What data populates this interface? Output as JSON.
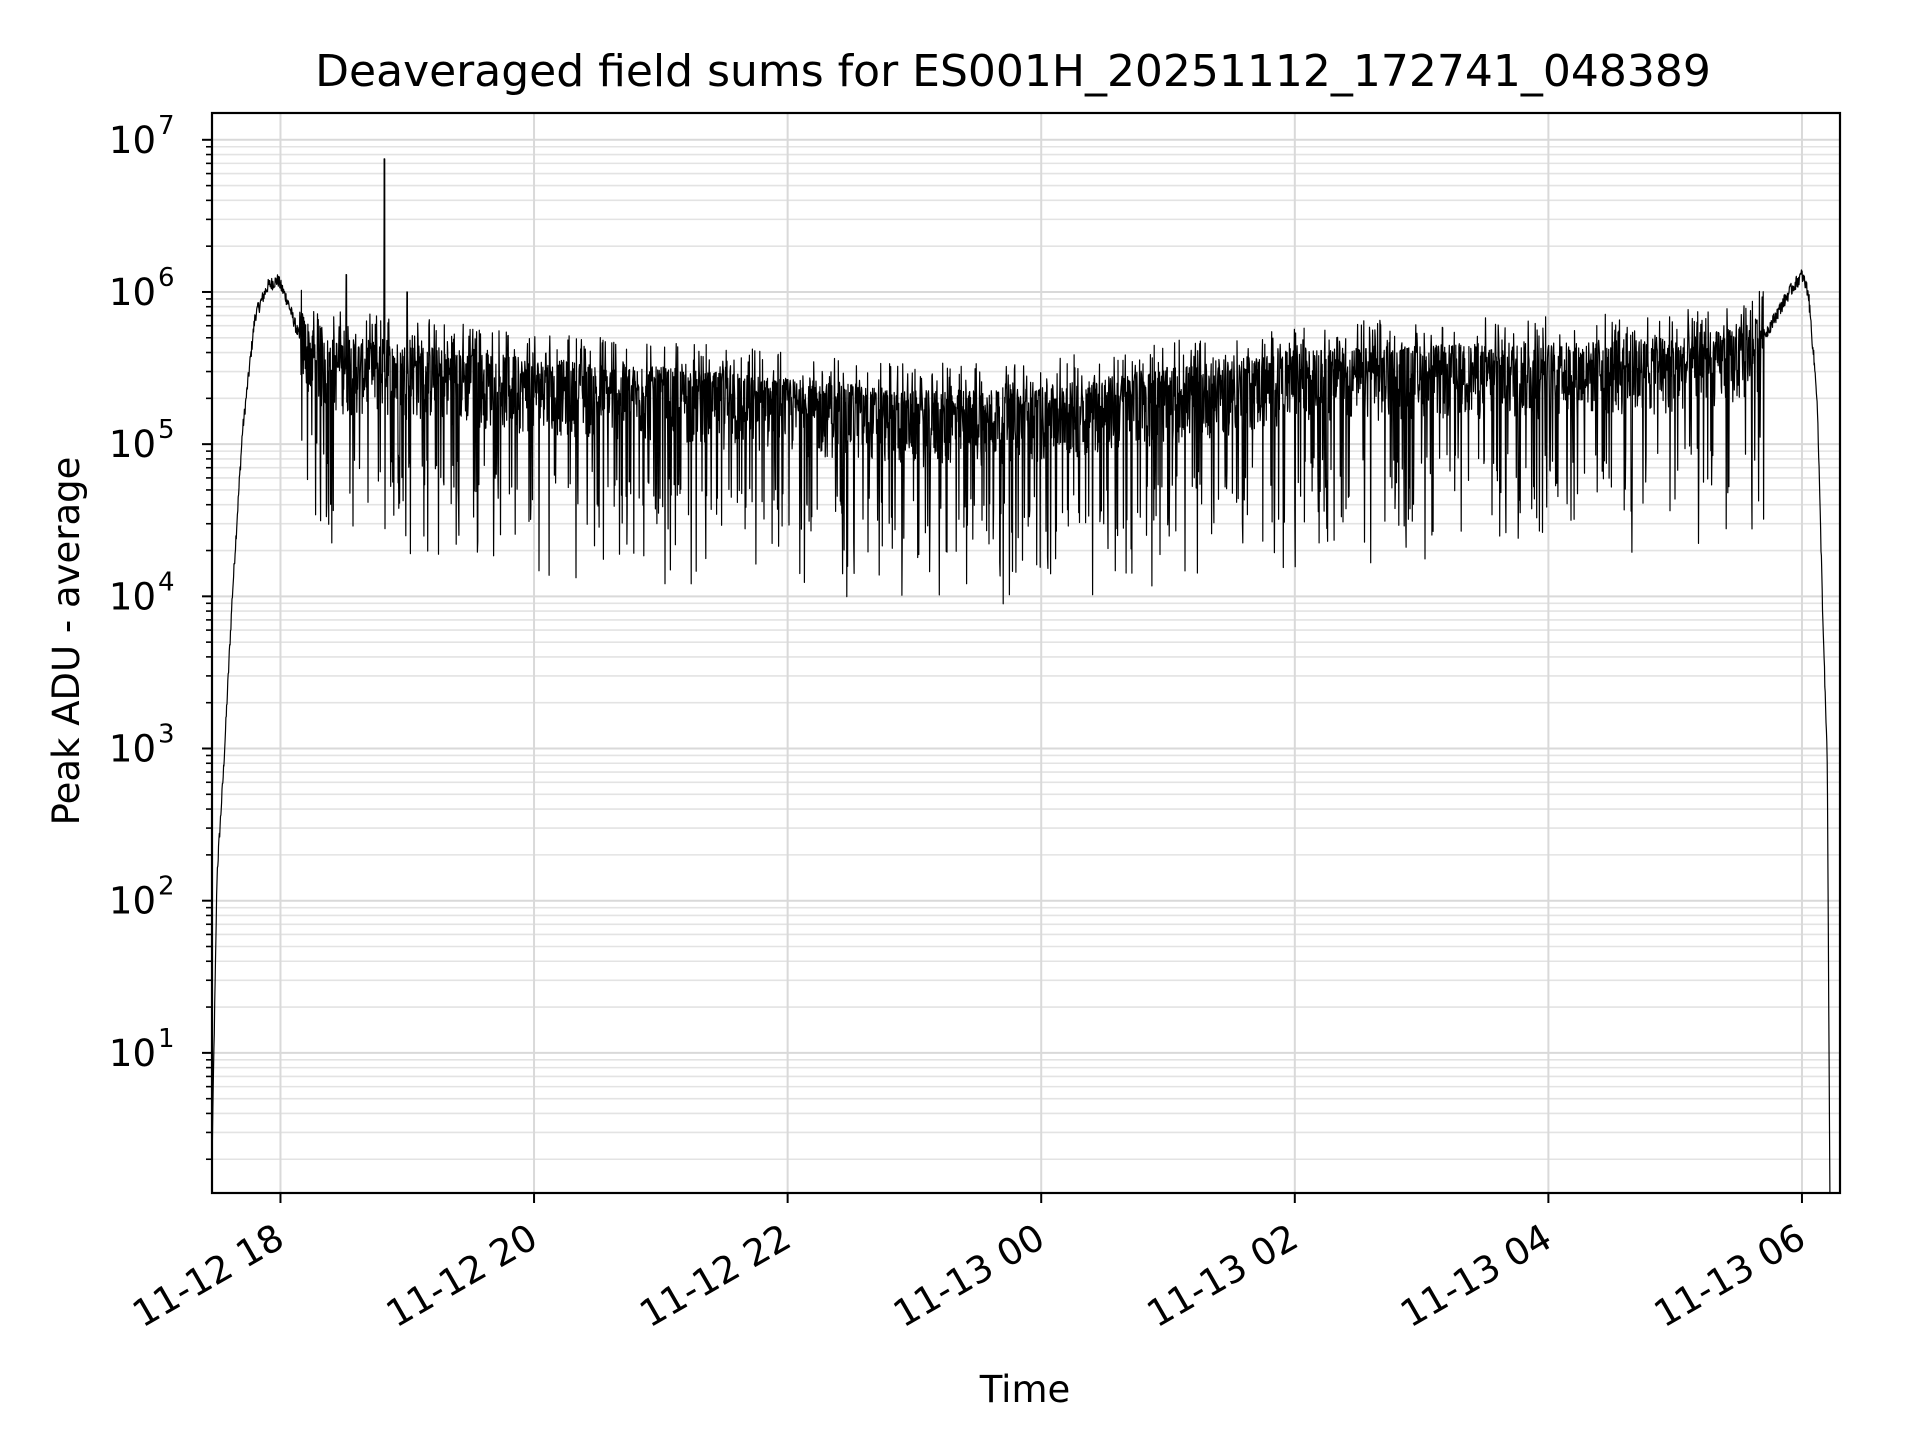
{
  "chart_data": {
    "type": "line",
    "title": "Deaveraged field sums for ES001H_20251112_172741_048389",
    "xlabel": "Time",
    "ylabel": "Peak ADU - average",
    "yscale": "log",
    "grid": true,
    "grid_minor": true,
    "x_unit": "hours since 11-12 00:00",
    "xlim": [
      17.46,
      30.3
    ],
    "ylim": [
      1.2,
      15000000
    ],
    "x_ticks": [
      {
        "value": 18,
        "label": "11-12 18"
      },
      {
        "value": 20,
        "label": "11-12 20"
      },
      {
        "value": 22,
        "label": "11-12 22"
      },
      {
        "value": 24,
        "label": "11-13 00"
      },
      {
        "value": 26,
        "label": "11-13 02"
      },
      {
        "value": 28,
        "label": "11-13 04"
      },
      {
        "value": 30,
        "label": "11-13 06"
      }
    ],
    "y_ticks": [
      {
        "value": 10,
        "base": "10",
        "exp": "1"
      },
      {
        "value": 100,
        "base": "10",
        "exp": "2"
      },
      {
        "value": 1000,
        "base": "10",
        "exp": "3"
      },
      {
        "value": 10000,
        "base": "10",
        "exp": "4"
      },
      {
        "value": 100000,
        "base": "10",
        "exp": "5"
      },
      {
        "value": 1000000,
        "base": "10",
        "exp": "6"
      },
      {
        "value": 10000000,
        "base": "10",
        "exp": "7"
      }
    ],
    "series": [
      {
        "name": "field sums",
        "color": "#000000",
        "description": "dense noisy signal",
        "envelope": [
          {
            "x": 17.46,
            "y": 2
          },
          {
            "x": 17.5,
            "y": 150
          },
          {
            "x": 17.55,
            "y": 700
          },
          {
            "x": 17.62,
            "y": 10000
          },
          {
            "x": 17.7,
            "y": 120000
          },
          {
            "x": 17.8,
            "y": 700000
          },
          {
            "x": 17.9,
            "y": 1100000
          },
          {
            "x": 17.98,
            "y": 1200000
          },
          {
            "x": 18.05,
            "y": 900000
          },
          {
            "x": 18.15,
            "y": 500000
          },
          {
            "x": 18.3,
            "y": 320000
          },
          {
            "x": 19.0,
            "y": 290000
          },
          {
            "x": 20.0,
            "y": 230000
          },
          {
            "x": 21.0,
            "y": 200000
          },
          {
            "x": 22.0,
            "y": 170000
          },
          {
            "x": 23.0,
            "y": 140000
          },
          {
            "x": 24.0,
            "y": 150000
          },
          {
            "x": 25.0,
            "y": 200000
          },
          {
            "x": 26.0,
            "y": 260000
          },
          {
            "x": 27.0,
            "y": 280000
          },
          {
            "x": 28.0,
            "y": 290000
          },
          {
            "x": 29.0,
            "y": 310000
          },
          {
            "x": 29.6,
            "y": 380000
          },
          {
            "x": 29.75,
            "y": 600000
          },
          {
            "x": 29.9,
            "y": 1000000
          },
          {
            "x": 30.0,
            "y": 1300000
          },
          {
            "x": 30.05,
            "y": 1000000
          },
          {
            "x": 30.12,
            "y": 200000
          },
          {
            "x": 30.17,
            "y": 5000
          },
          {
            "x": 30.2,
            "y": 800
          },
          {
            "x": 30.22,
            "y": 1.2
          }
        ],
        "spikes": [
          {
            "x": 18.82,
            "y": 7500000
          },
          {
            "x": 18.52,
            "y": 1300000
          },
          {
            "x": 19.0,
            "y": 1000000
          }
        ]
      }
    ]
  }
}
